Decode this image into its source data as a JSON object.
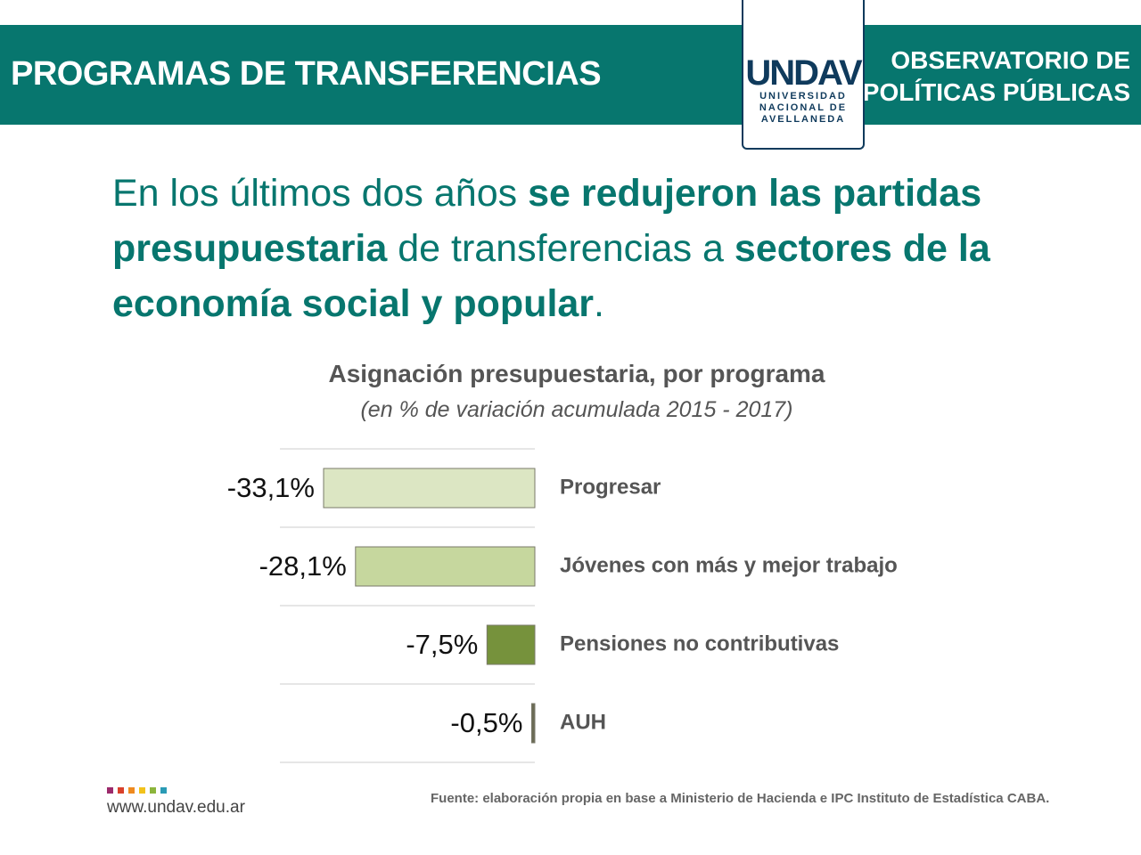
{
  "header": {
    "title": "PROGRAMAS DE TRANSFERENCIAS",
    "right_lines": [
      "OBSERVATORIO DE",
      "POLÍTICAS PÚBLICAS"
    ],
    "logo": {
      "name": "UNDAV",
      "lines": [
        "UNIVERSIDAD",
        "NACIONAL DE",
        "AVELLANEDA"
      ]
    }
  },
  "headline": [
    {
      "text": "En los últimos dos años ",
      "bold": false
    },
    {
      "text": "se redujeron las partidas presupuestaria",
      "bold": true
    },
    {
      "text": " de transferencias a ",
      "bold": false
    },
    {
      "text": "sectores de la economía social y popular",
      "bold": true
    },
    {
      "text": ".",
      "bold": false
    }
  ],
  "chart_data": {
    "type": "bar",
    "orientation": "horizontal",
    "title": "Asignación presupuestaria,  por programa",
    "subtitle": "(en % de variación acumulada 2015 - 2017)",
    "categories": [
      "Progresar",
      "Jóvenes con más y mejor trabajo",
      "Pensiones no contributivas",
      "AUH"
    ],
    "values": [
      -33.1,
      -28.1,
      -7.5,
      -0.5
    ],
    "value_labels": [
      "-33,1%",
      "-28,1%",
      "-7,5%",
      "-0,5%"
    ],
    "colors": [
      "#dce6c3",
      "#c6d79e",
      "#76923c",
      "#6b6b55"
    ]
  },
  "footer": {
    "url": "www.undav.edu.ar",
    "source": "Fuente: elaboración propia en base a Ministerio de Hacienda e IPC Instituto de Estadística CABA."
  }
}
